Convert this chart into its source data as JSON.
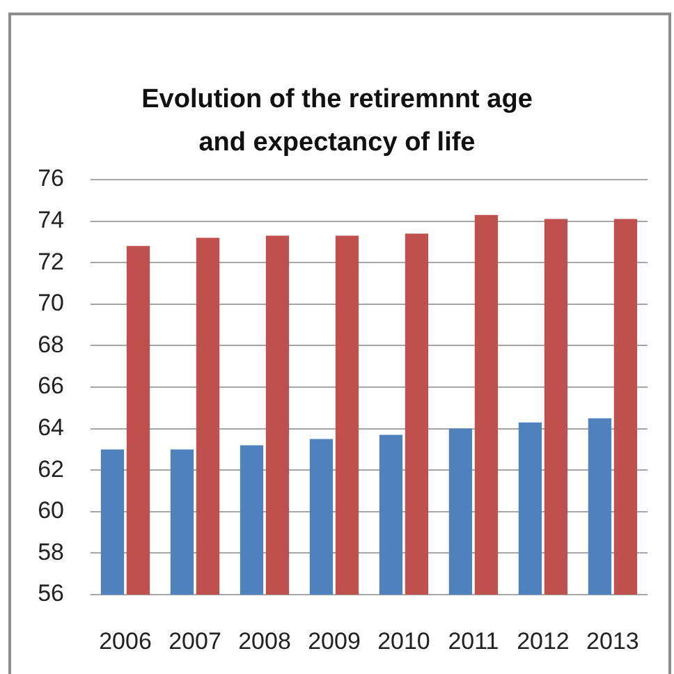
{
  "chart_data": {
    "type": "bar",
    "title": "Evolution of the retiremnnt age and expectancy of life",
    "categories": [
      "2006",
      "2007",
      "2008",
      "2009",
      "2010",
      "2011",
      "2012",
      "2013"
    ],
    "series": [
      {
        "color": "#4f81bd",
        "values": [
          63.0,
          63.0,
          63.2,
          63.5,
          63.7,
          64.0,
          64.3,
          64.5
        ]
      },
      {
        "color": "#c0504d",
        "values": [
          72.8,
          73.2,
          73.3,
          73.3,
          73.4,
          74.3,
          74.1,
          74.1
        ]
      }
    ],
    "ylim": [
      56,
      76
    ],
    "yticks": [
      56,
      58,
      60,
      62,
      64,
      66,
      68,
      70,
      72,
      74,
      76
    ],
    "grid": "y"
  }
}
